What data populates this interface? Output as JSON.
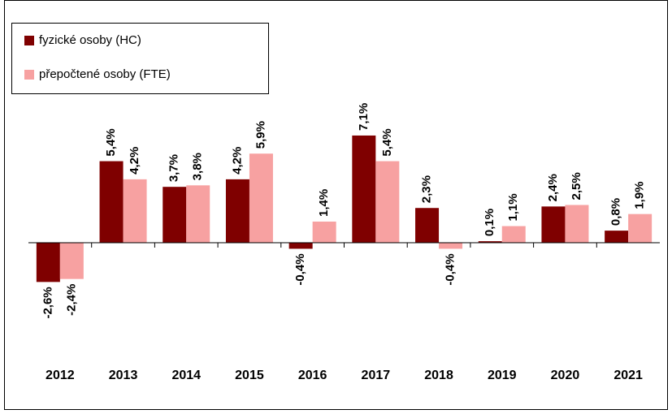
{
  "chart_data": {
    "type": "bar",
    "categories": [
      "2012",
      "2013",
      "2014",
      "2015",
      "2016",
      "2017",
      "2018",
      "2019",
      "2020",
      "2021"
    ],
    "series": [
      {
        "name": "fyzické osoby (HC)",
        "color": "#7f0000",
        "values": [
          -2.6,
          5.4,
          3.7,
          4.2,
          -0.4,
          7.1,
          2.3,
          0.1,
          2.4,
          0.8
        ],
        "value_labels": [
          "-2,6%",
          "5,4%",
          "3,7%",
          "4,2%",
          "-0,4%",
          "7,1%",
          "2,3%",
          "0,1%",
          "2,4%",
          "0,8%"
        ]
      },
      {
        "name": "přepočtené osoby (FTE)",
        "color": "#f7a1a1",
        "values": [
          -2.4,
          4.2,
          3.8,
          5.9,
          1.4,
          5.4,
          -0.4,
          1.1,
          2.5,
          1.9
        ],
        "value_labels": [
          "-2,4%",
          "4,2%",
          "3,8%",
          "5,9%",
          "1,4%",
          "5,4%",
          "-0,4%",
          "1,1%",
          "2,5%",
          "1,9%"
        ]
      }
    ],
    "ylim": [
      -6,
      15
    ],
    "legend": "upper left"
  }
}
